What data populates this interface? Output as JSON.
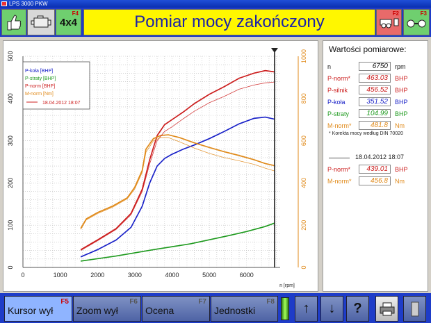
{
  "window": {
    "title": "LPS 3000 PKW"
  },
  "header": {
    "title": "Pomiar mocy zakończony",
    "btn_4x4": "4x4",
    "fkey_4x4": "F4",
    "fkey_f2": "F2",
    "fkey_f3": "F3",
    "icons": [
      "thumbs-up-icon",
      "engine-icon",
      "trailer-icon",
      "axle-icon"
    ]
  },
  "colors": {
    "p_kola": "#1a22c8",
    "p_straty": "#1e9a1e",
    "p_norm": "#cc1e1e",
    "m_norm": "#e08a1a",
    "header_bg": "#1e3cc8",
    "title_bg": "#fff700"
  },
  "chart_data": {
    "type": "line",
    "x_label": "n [rpm]",
    "x_range": [
      0,
      6900
    ],
    "x_ticks": [
      "0",
      "1000",
      "2000",
      "3000",
      "4000",
      "5000",
      "6000"
    ],
    "y_left_range": [
      0,
      500
    ],
    "y_left_ticks": [
      "0",
      "100",
      "200",
      "300",
      "400",
      "500"
    ],
    "y_right_range": [
      0,
      1000
    ],
    "y_right_ticks": [
      "0",
      "200",
      "400",
      "600",
      "800",
      "1000"
    ],
    "cursor_rpm": 6750,
    "legend": [
      "P-koła [BHP]",
      "P-straty [BHP]",
      "P-norm [BHP]",
      "M-norm [Nm]",
      "18.04.2012 18:07"
    ],
    "series": [
      {
        "name": "P-koła [BHP]",
        "axis": "left",
        "color": "#1a22c8",
        "x": [
          1550,
          2000,
          2500,
          2900,
          3200,
          3400,
          3600,
          3800,
          4000,
          4300,
          4600,
          5000,
          5400,
          5800,
          6200,
          6500,
          6750
        ],
        "y": [
          25,
          42,
          65,
          95,
          145,
          200,
          240,
          258,
          268,
          280,
          290,
          305,
          322,
          340,
          353,
          356,
          351
        ]
      },
      {
        "name": "P-straty [BHP]",
        "axis": "left",
        "color": "#1e9a1e",
        "x": [
          1550,
          2500,
          3500,
          4500,
          5500,
          6000,
          6500,
          6750
        ],
        "y": [
          15,
          27,
          42,
          56,
          75,
          85,
          97,
          105
        ]
      },
      {
        "name": "P-norm [BHP]",
        "axis": "left",
        "color": "#cc1e1e",
        "x": [
          1550,
          2000,
          2500,
          2900,
          3200,
          3400,
          3600,
          3800,
          4000,
          4300,
          4600,
          5000,
          5400,
          5800,
          6200,
          6500,
          6750
        ],
        "y": [
          42,
          65,
          92,
          128,
          185,
          255,
          312,
          338,
          350,
          368,
          388,
          410,
          428,
          448,
          460,
          466,
          463
        ]
      },
      {
        "name": "M-norm [Nm]",
        "axis": "right",
        "color": "#e08a1a",
        "x": [
          1550,
          1700,
          2000,
          2400,
          2800,
          3000,
          3200,
          3300,
          3500,
          3700,
          3900,
          4200,
          4600,
          5000,
          5400,
          5800,
          6200,
          6500,
          6750
        ],
        "y": [
          185,
          230,
          260,
          290,
          330,
          380,
          460,
          560,
          610,
          625,
          628,
          615,
          590,
          568,
          548,
          530,
          510,
          492,
          482
        ]
      },
      {
        "name": "18.04.2012 18:07",
        "axis": "left",
        "color": "#cc1e1e",
        "x": [
          1550,
          2000,
          2500,
          2900,
          3200,
          3400,
          3600,
          3800,
          4000,
          4300,
          4600,
          5000,
          5400,
          5800,
          6200,
          6500,
          6750
        ],
        "y": [
          40,
          63,
          90,
          125,
          180,
          245,
          300,
          322,
          333,
          352,
          370,
          390,
          405,
          422,
          432,
          437,
          439
        ]
      },
      {
        "name": "18.04.2012 18:07",
        "axis": "right",
        "color": "#e08a1a",
        "x": [
          1550,
          1700,
          2000,
          2400,
          2800,
          3000,
          3200,
          3300,
          3500,
          3700,
          3900,
          4200,
          4600,
          5000,
          5400,
          5800,
          6200,
          6500,
          6750
        ],
        "y": [
          180,
          225,
          255,
          285,
          325,
          372,
          450,
          545,
          600,
          615,
          615,
          595,
          565,
          540,
          520,
          505,
          488,
          470,
          457
        ]
      }
    ]
  },
  "panel": {
    "title": "Wartości pomiarowe:",
    "rows": [
      {
        "label": "n",
        "value": "6750",
        "unit": "rpm",
        "color": "#111111"
      },
      {
        "label": "P-norm*",
        "value": "463.03",
        "unit": "BHP",
        "color": "#cc1e1e"
      },
      {
        "label": "P-silnik",
        "value": "456.52",
        "unit": "BHP",
        "color": "#cc1e1e"
      },
      {
        "label": "P-koła",
        "value": "351.52",
        "unit": "BHP",
        "color": "#1a22c8"
      },
      {
        "label": "P-straty",
        "value": "104.99",
        "unit": "BHP",
        "color": "#1e9a1e"
      },
      {
        "label": "M-norm*",
        "value": "481.8",
        "unit": "Nm",
        "color": "#e08a1a"
      }
    ],
    "note": "* Korekta  mocy według DIN 70020",
    "compare_date": "18.04.2012 18:07",
    "compare_rows": [
      {
        "label": "P-norm*",
        "value": "439.01",
        "unit": "BHP",
        "color": "#cc1e1e"
      },
      {
        "label": "M-norm*",
        "value": "456.8",
        "unit": "Nm",
        "color": "#e08a1a"
      }
    ]
  },
  "toolbar": {
    "kursor_label": "Kursor wył",
    "kursor_fkey": "F5",
    "zoom_label": "Zoom wył",
    "zoom_fkey": "F6",
    "ocena_label": "Ocena",
    "ocena_fkey": "F7",
    "jednostki_label": "Jednostki",
    "jednostki_fkey": "F8",
    "up_glyph": "↑",
    "down_glyph": "↓",
    "help_glyph": "?"
  }
}
